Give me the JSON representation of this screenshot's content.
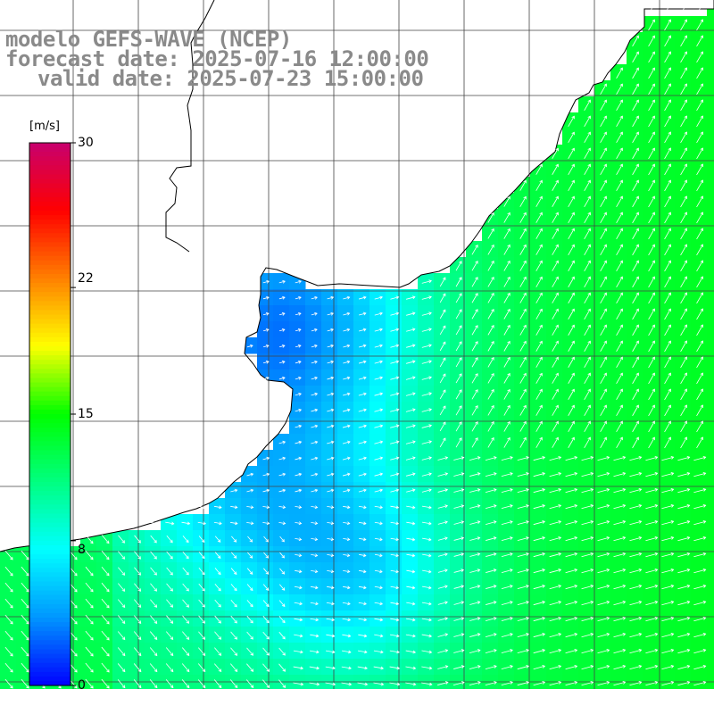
{
  "title": {
    "line1": "modelo GEFS-WAVE (NCEP)",
    "line2": "forecast date: 2025-07-16 12:00:00",
    "line3": "valid date: 2025-07-23 15:00:00"
  },
  "colorbar": {
    "unit": "[m/s]",
    "min": 0,
    "max": 30,
    "ticks": [
      {
        "value": 30,
        "label": "30"
      },
      {
        "value": 22,
        "label": "22"
      },
      {
        "value": 15,
        "label": "15"
      },
      {
        "value": 8,
        "label": "8"
      },
      {
        "value": 0,
        "label": "0"
      }
    ],
    "colors": [
      "#0000ff",
      "#0096ff",
      "#00ffff",
      "#00ff80",
      "#00ff00",
      "#ffff00",
      "#ff8000",
      "#ff0000",
      "#c8006e"
    ]
  },
  "colors": {
    "land": "#ffffff",
    "grid": "#444444",
    "coastline": "#000000",
    "title": "#8a8a8a",
    "arrows": "#ffffff"
  },
  "layer": "wind speed and direction"
}
